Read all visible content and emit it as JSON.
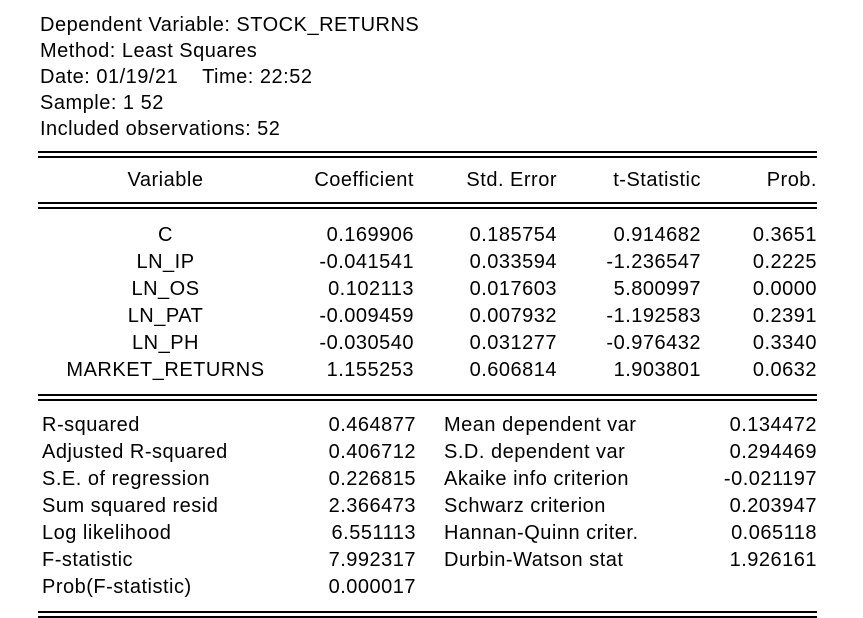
{
  "header": {
    "lines": [
      "Dependent Variable: STOCK_RETURNS",
      "Method: Least Squares",
      "Date: 01/19/21    Time: 22:52",
      "Sample: 1 52",
      "Included observations: 52"
    ]
  },
  "coef": {
    "columns": [
      "Variable",
      "Coefficient",
      "Std. Error",
      "t-Statistic",
      "Prob."
    ],
    "rows": [
      {
        "variable": "C",
        "coefficient": "0.169906",
        "std_error": "0.185754",
        "t_statistic": "0.914682",
        "prob": "0.3651"
      },
      {
        "variable": "LN_IP",
        "coefficient": "-0.041541",
        "std_error": "0.033594",
        "t_statistic": "-1.236547",
        "prob": "0.2225"
      },
      {
        "variable": "LN_OS",
        "coefficient": "0.102113",
        "std_error": "0.017603",
        "t_statistic": "5.800997",
        "prob": "0.0000"
      },
      {
        "variable": "LN_PAT",
        "coefficient": "-0.009459",
        "std_error": "0.007932",
        "t_statistic": "-1.192583",
        "prob": "0.2391"
      },
      {
        "variable": "LN_PH",
        "coefficient": "-0.030540",
        "std_error": "0.031277",
        "t_statistic": "-0.976432",
        "prob": "0.3340"
      },
      {
        "variable": "MARKET_RETURNS",
        "coefficient": "1.155253",
        "std_error": "0.606814",
        "t_statistic": "1.903801",
        "prob": "0.0632"
      }
    ]
  },
  "summary": {
    "rows": [
      {
        "l_label": "R-squared",
        "l_value": "0.464877",
        "r_label": "Mean dependent var",
        "r_value": "0.134472"
      },
      {
        "l_label": "Adjusted R-squared",
        "l_value": "0.406712",
        "r_label": "S.D. dependent var",
        "r_value": "0.294469"
      },
      {
        "l_label": "S.E. of regression",
        "l_value": "0.226815",
        "r_label": "Akaike info criterion",
        "r_value": "-0.021197"
      },
      {
        "l_label": "Sum squared resid",
        "l_value": "2.366473",
        "r_label": "Schwarz criterion",
        "r_value": "0.203947"
      },
      {
        "l_label": "Log likelihood",
        "l_value": "6.551113",
        "r_label": "Hannan-Quinn criter.",
        "r_value": "0.065118"
      },
      {
        "l_label": "F-statistic",
        "l_value": "7.992317",
        "r_label": "Durbin-Watson stat",
        "r_value": "1.926161"
      },
      {
        "l_label": "Prob(F-statistic)",
        "l_value": "0.000017",
        "r_label": "",
        "r_value": ""
      }
    ]
  }
}
